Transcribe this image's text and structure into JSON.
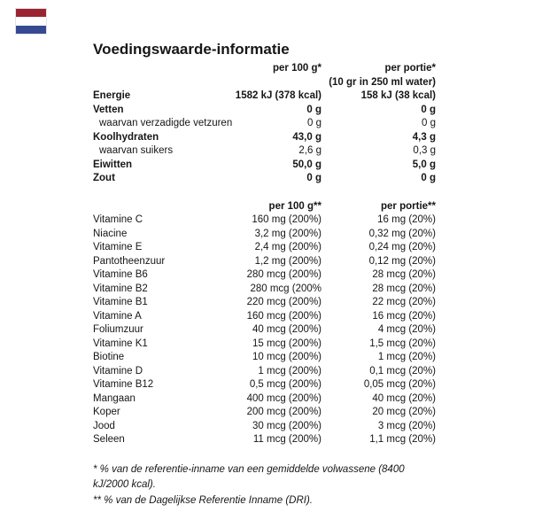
{
  "title": "Voedingswaarde-informatie",
  "flag": {
    "country": "Netherlands",
    "colors": {
      "top": "#9B2433",
      "middle": "#FFFFFF",
      "bottom": "#364A93"
    }
  },
  "macro_table": {
    "col_headers": [
      "per 100 g*",
      "per portie*"
    ],
    "col_subheader": "(10 gr in 250 ml water)",
    "rows": [
      {
        "label": "Energie",
        "bold": true,
        "indent": false,
        "per_100g": "1582 kJ (378 kcal)",
        "per_portie": "158 kJ (38 kcal)"
      },
      {
        "label": "Vetten",
        "bold": true,
        "indent": false,
        "per_100g": "0 g",
        "per_portie": "0 g"
      },
      {
        "label": "waarvan verzadigde vetzuren",
        "bold": false,
        "indent": true,
        "per_100g": "0 g",
        "per_portie": "0 g"
      },
      {
        "label": "Koolhydraten",
        "bold": true,
        "indent": false,
        "per_100g": "43,0 g",
        "per_portie": "4,3 g"
      },
      {
        "label": "waarvan suikers",
        "bold": false,
        "indent": true,
        "per_100g": "2,6 g",
        "per_portie": "0,3 g"
      },
      {
        "label": "Eiwitten",
        "bold": true,
        "indent": false,
        "per_100g": "50,0 g",
        "per_portie": "5,0 g"
      },
      {
        "label": "Zout",
        "bold": true,
        "indent": false,
        "per_100g": "0 g",
        "per_portie": "0 g"
      }
    ]
  },
  "vitamin_table": {
    "col_headers": [
      "per 100 g**",
      "per portie**"
    ],
    "rows": [
      {
        "label": "Vitamine C",
        "per_100g": "160 mg (200%)",
        "per_portie": "16 mg (20%)"
      },
      {
        "label": "Niacine",
        "per_100g": "3,2 mg (200%)",
        "per_portie": "0,32 mg (20%)"
      },
      {
        "label": "Vitamine E",
        "per_100g": "2,4 mg (200%)",
        "per_portie": "0,24 mg (20%)"
      },
      {
        "label": "Pantotheenzuur",
        "per_100g": "1,2 mg (200%)",
        "per_portie": "0,12 mg (20%)"
      },
      {
        "label": "Vitamine B6",
        "per_100g": "280 mcg (200%)",
        "per_portie": "28 mcg (20%)"
      },
      {
        "label": "Vitamine B2",
        "per_100g": "280 mcg (200%",
        "per_portie": "28 mcg (20%)"
      },
      {
        "label": "Vitamine B1",
        "per_100g": "220 mcg (200%)",
        "per_portie": "22 mcg (20%)"
      },
      {
        "label": "Vitamine A",
        "per_100g": "160 mcg (200%)",
        "per_portie": "16 mcg (20%)"
      },
      {
        "label": "Foliumzuur",
        "per_100g": "40 mcg (200%)",
        "per_portie": "4 mcg (20%)"
      },
      {
        "label": "Vitamine K1",
        "per_100g": "15 mcg (200%)",
        "per_portie": "1,5 mcg (20%)"
      },
      {
        "label": "Biotine",
        "per_100g": "10 mcg (200%)",
        "per_portie": "1 mcg (20%)"
      },
      {
        "label": "Vitamine D",
        "per_100g": "1 mcg (200%)",
        "per_portie": "0,1 mcg (20%)"
      },
      {
        "label": "Vitamine B12",
        "per_100g": "0,5 mcg (200%)",
        "per_portie": "0,05 mcg (20%)"
      },
      {
        "label": "Mangaan",
        "per_100g": "400 mcg (200%)",
        "per_portie": "40 mcg (20%)"
      },
      {
        "label": "Koper",
        "per_100g": "200 mcg (200%)",
        "per_portie": "20 mcg (20%)"
      },
      {
        "label": "Jood",
        "per_100g": "30 mcg (200%)",
        "per_portie": "3 mcg (20%)"
      },
      {
        "label": "Seleen",
        "per_100g": "11 mcg (200%)",
        "per_portie": "1,1 mcg (20%)"
      }
    ]
  },
  "footnotes": [
    "* % van de referentie-inname van een gemiddelde volwassene (8400 kJ/2000 kcal).",
    "** % van de Dagelijkse Referentie Inname (DRI)."
  ]
}
